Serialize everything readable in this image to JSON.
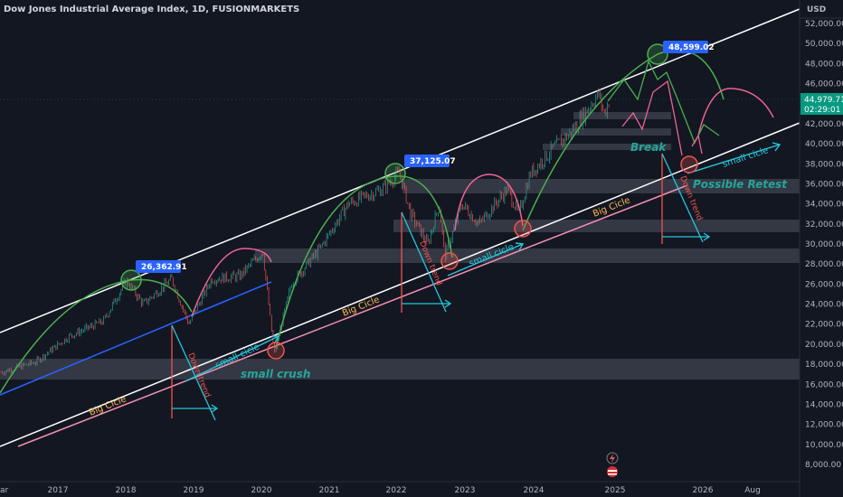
{
  "header": {
    "title": "Dow Jones Industrial Average Index, 1D, FUSIONMARKETS"
  },
  "currency": "USD",
  "price_badge": {
    "price": "44,979.71",
    "countdown": "02:29:01"
  },
  "colors": {
    "background": "#131722",
    "candle_up": "#26a69a",
    "candle_down": "#ef5350",
    "channel": "#ffffff",
    "arc_green": "#4caf50",
    "arc_pink": "#f06292",
    "big_cicle_line": "#f48fb1",
    "small_cicle_arrow": "#26c6da",
    "blue_line": "#2962ff",
    "price_badge": "#089981",
    "label_blue": "#2962ff"
  },
  "chart_data": {
    "type": "candlestick",
    "x_axis_labels": [
      "ar",
      "2017",
      "2018",
      "2019",
      "2020",
      "2021",
      "2022",
      "2023",
      "2024",
      "2025",
      "2026",
      "Aug"
    ],
    "y_axis_labels": [
      "52,000.00",
      "50,000.00",
      "48,000.00",
      "46,000.00",
      "42,000.00",
      "40,000.00",
      "38,000.00",
      "36,000.00",
      "34,000.00",
      "32,000.00",
      "30,000.00",
      "28,000.00",
      "26,000.00",
      "24,000.00",
      "22,000.00",
      "20,000.00",
      "18,000.00",
      "16,000.00",
      "14,000.00",
      "12,000.00",
      "10,000.00",
      "8,000.00"
    ],
    "ylim": [
      7600,
      53200
    ],
    "last_price": 44979.71,
    "price_path": [
      [
        "2016-03",
        17200
      ],
      [
        "2016-09",
        18200
      ],
      [
        "2017-03",
        20800
      ],
      [
        "2017-09",
        22300
      ],
      [
        "2018-01",
        26362.91
      ],
      [
        "2018-04",
        24000
      ],
      [
        "2018-09",
        26500
      ],
      [
        "2018-12",
        22000
      ],
      [
        "2019-04",
        26500
      ],
      [
        "2019-09",
        26800
      ],
      [
        "2020-01",
        29300
      ],
      [
        "2020-03",
        19000
      ],
      [
        "2020-06",
        26000
      ],
      [
        "2020-11",
        29500
      ],
      [
        "2021-04",
        34000
      ],
      [
        "2021-10",
        35500
      ],
      [
        "2022-01",
        37125.07
      ],
      [
        "2022-03",
        33000
      ],
      [
        "2022-06",
        30000
      ],
      [
        "2022-08",
        34000
      ],
      [
        "2022-09",
        28700
      ],
      [
        "2022-12",
        34000
      ],
      [
        "2023-03",
        32000
      ],
      [
        "2023-08",
        35500
      ],
      [
        "2023-10",
        33000
      ],
      [
        "2023-12",
        37000
      ],
      [
        "2024-04",
        39500
      ],
      [
        "2024-07",
        41000
      ],
      [
        "2024-12",
        45000
      ],
      [
        "2025-01",
        43000
      ],
      [
        "2025-02",
        44500
      ]
    ],
    "markers": [
      {
        "label": "26,362.91",
        "date": "2018-01",
        "value": 26362.91
      },
      {
        "label": "37,125.07",
        "date": "2022-01",
        "value": 37125.07
      },
      {
        "label": "48,599.02",
        "date": "2025-07",
        "value": 48599.02
      }
    ]
  },
  "annotations": {
    "big_cicle_1": "Big Cicle",
    "big_cicle_2": "Big Cicle",
    "big_cicle_3": "Big Cicle",
    "small_cicle_1": "small cicle",
    "small_cicle_2": "small cicle",
    "small_cicle_3": "small cicle",
    "down_trend_1": "Down trend",
    "down_trend_2": "Down trend",
    "down_trend_3": "Down trend",
    "small_crush": "small crush",
    "break": "Break",
    "possible_retest": "Possible Retest"
  }
}
